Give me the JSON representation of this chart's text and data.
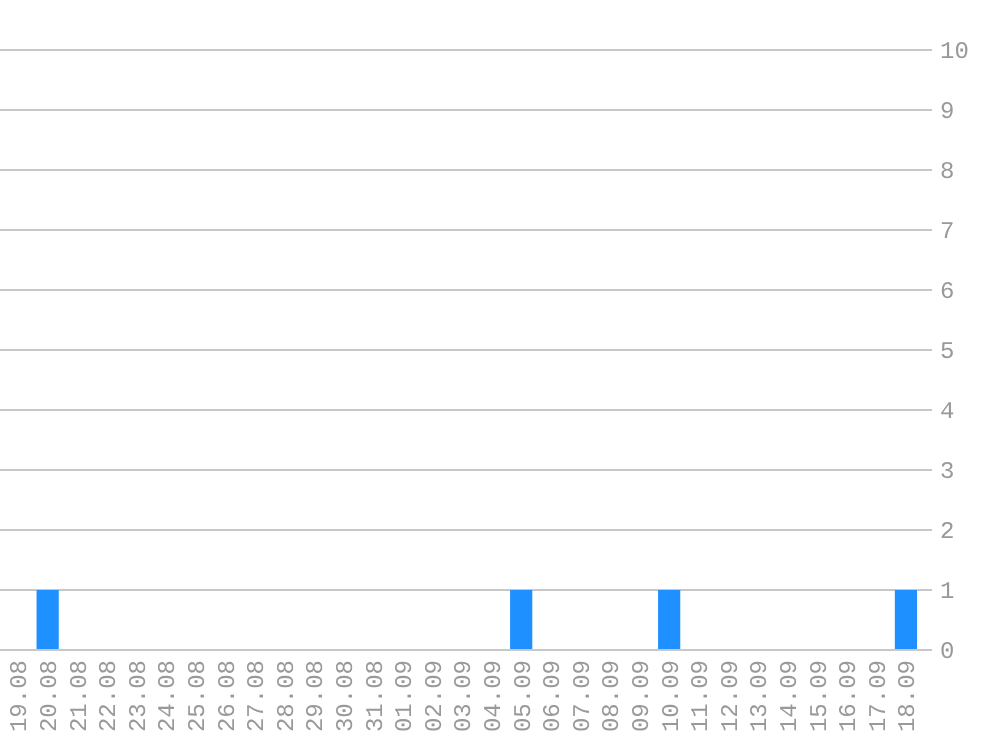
{
  "chart_data": {
    "type": "bar",
    "categories": [
      "19.08",
      "20.08",
      "21.08",
      "22.08",
      "23.08",
      "24.08",
      "25.08",
      "26.08",
      "27.08",
      "28.08",
      "29.08",
      "30.08",
      "31.08",
      "01.09",
      "02.09",
      "03.09",
      "04.09",
      "05.09",
      "06.09",
      "07.09",
      "08.09",
      "09.09",
      "10.09",
      "11.09",
      "12.09",
      "13.09",
      "14.09",
      "15.09",
      "16.09",
      "17.09",
      "18.09"
    ],
    "values": [
      0,
      1,
      0,
      0,
      0,
      0,
      0,
      0,
      0,
      0,
      0,
      0,
      0,
      0,
      0,
      0,
      0,
      1,
      0,
      0,
      0,
      0,
      1,
      0,
      0,
      0,
      0,
      0,
      0,
      0,
      1
    ],
    "color": "#1e90ff",
    "ylim": [
      0,
      10
    ],
    "yticks": [
      0,
      1,
      2,
      3,
      4,
      5,
      6,
      7,
      8,
      9,
      10
    ],
    "grid": "y"
  }
}
